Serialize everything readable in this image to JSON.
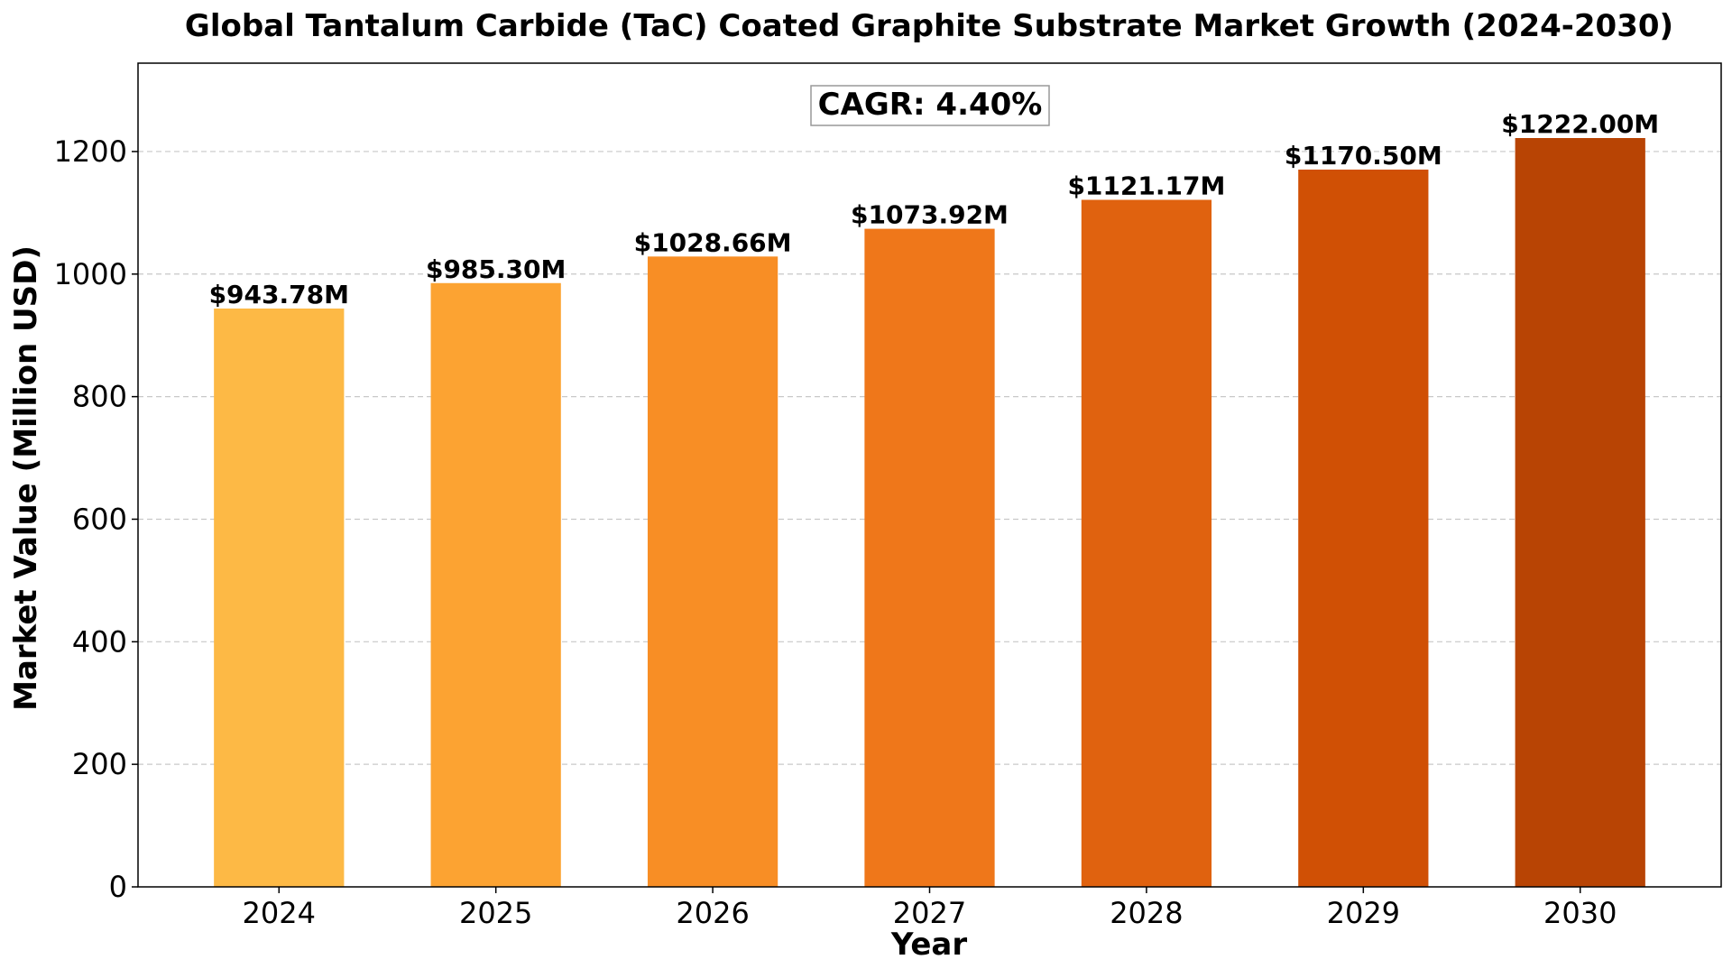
{
  "chart_data": {
    "type": "bar",
    "title": "Global Tantalum Carbide (TaC) Coated Graphite Substrate Market Growth (2024-2030)",
    "xlabel": "Year",
    "ylabel": "Market Value (Million USD)",
    "categories": [
      "2024",
      "2025",
      "2026",
      "2027",
      "2028",
      "2029",
      "2030"
    ],
    "values": [
      943.78,
      985.3,
      1028.66,
      1073.92,
      1121.17,
      1170.5,
      1222.0
    ],
    "value_labels": [
      "$943.78M",
      "$985.30M",
      "$1028.66M",
      "$1073.92M",
      "$1121.17M",
      "$1170.50M",
      "$1222.00M"
    ],
    "bar_colors": [
      "#fdb945",
      "#fca332",
      "#f88e25",
      "#ef771a",
      "#e0620f",
      "#d05005",
      "#b84404"
    ],
    "ylim": [
      0,
      1344.2
    ],
    "yticks": [
      0,
      200,
      400,
      600,
      800,
      1000,
      1200
    ],
    "grid": "y-dashed",
    "annotation": "CAGR: 4.40%"
  }
}
